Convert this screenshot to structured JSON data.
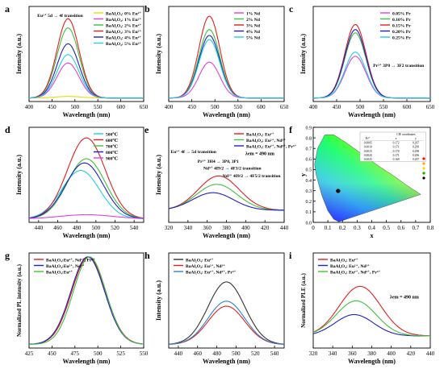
{
  "chart_data": [
    {
      "id": "a",
      "type": "line",
      "panel_label": "a",
      "xlabel": "Wavelength (nm)",
      "ylabel": "Intensity (a.u.)",
      "xlim": [
        400,
        650
      ],
      "xticks": [
        400,
        450,
        500,
        550,
        600,
        650
      ],
      "ylim": [
        0,
        1.1
      ],
      "legend_position": "top-right",
      "annotations": [
        {
          "text": "Eu²⁺ 5d → 4f transition",
          "x": 418,
          "y": 0.98
        }
      ],
      "series": [
        {
          "name": "BaAl₂O₄: 0% Eu²⁺",
          "color": "#e8e000",
          "peak": 0.02,
          "center": 485,
          "width": 40
        },
        {
          "name": "BaAl₂O₄: 1% Eu²⁺",
          "color": "#e040e0",
          "peak": 0.42,
          "center": 485,
          "width": 34
        },
        {
          "name": "BaAl₂O₄: 2% Eu²⁺",
          "color": "#40c040",
          "peak": 0.84,
          "center": 485,
          "width": 34
        },
        {
          "name": "BaAl₂O₄: 3% Eu²⁺",
          "color": "#e02020",
          "peak": 0.95,
          "center": 485,
          "width": 34
        },
        {
          "name": "BaAl₂O₄: 4% Eu²⁺",
          "color": "#2020c0",
          "peak": 0.65,
          "center": 485,
          "width": 34
        },
        {
          "name": "BaAl₂O₄: 5% Eu²⁺",
          "color": "#20d0e0",
          "peak": 0.52,
          "center": 485,
          "width": 34
        }
      ]
    },
    {
      "id": "b",
      "type": "line",
      "panel_label": "b",
      "xlabel": "Wavelength (nm)",
      "ylabel": "Intensity (a.u.)",
      "xlim": [
        400,
        650
      ],
      "xticks": [
        400,
        450,
        500,
        550,
        600,
        650
      ],
      "ylim": [
        0,
        1.1
      ],
      "legend_position": "top-right",
      "series": [
        {
          "name": "1% Nd",
          "color": "#e040e0",
          "peak": 0.43,
          "center": 488,
          "width": 32
        },
        {
          "name": "2% Nd",
          "color": "#40c040",
          "peak": 0.82,
          "center": 488,
          "width": 32
        },
        {
          "name": "3% Nd",
          "color": "#e02020",
          "peak": 0.98,
          "center": 488,
          "width": 32
        },
        {
          "name": "4% Nd",
          "color": "#2020c0",
          "peak": 0.75,
          "center": 488,
          "width": 32
        },
        {
          "name": "5% Nd",
          "color": "#20d0e0",
          "peak": 0.7,
          "center": 488,
          "width": 32
        }
      ]
    },
    {
      "id": "c",
      "type": "line",
      "panel_label": "c",
      "xlabel": "Wavelength (nm)",
      "ylabel": "Intensity (a.u.)",
      "xlim": [
        400,
        650
      ],
      "xticks": [
        400,
        450,
        500,
        550,
        600,
        650
      ],
      "ylim": [
        0,
        1.1
      ],
      "legend_position": "top-right",
      "annotations": [
        {
          "text": "Pr³⁺ 3P0 → 3F2 transition",
          "x": 528,
          "y": 0.4
        }
      ],
      "series": [
        {
          "name": "0.05% Pr",
          "color": "#e040e0",
          "peak": 0.5,
          "center": 490,
          "width": 32
        },
        {
          "name": "0.10% Pr",
          "color": "#40c040",
          "peak": 0.78,
          "center": 490,
          "width": 32
        },
        {
          "name": "0.15% Pr",
          "color": "#e02020",
          "peak": 0.88,
          "center": 490,
          "width": 32
        },
        {
          "name": "0.20% Pr",
          "color": "#2020c0",
          "peak": 0.82,
          "center": 490,
          "width": 32
        },
        {
          "name": "0.25% Pr",
          "color": "#20d0e0",
          "peak": 0.55,
          "center": 490,
          "width": 32
        }
      ]
    },
    {
      "id": "d",
      "type": "line",
      "panel_label": "d",
      "xlabel": "Wavelength (nm)",
      "ylabel": "Intensity (a.u.)",
      "xlim": [
        430,
        550
      ],
      "xticks": [
        440,
        460,
        480,
        500,
        520,
        540
      ],
      "ylim": [
        0,
        1.1
      ],
      "legend_position": "top-right",
      "series": [
        {
          "name": "500℃",
          "color": "#20d0e0",
          "peak": 0.58,
          "center": 484,
          "width": 28
        },
        {
          "name": "600℃",
          "color": "#e02020",
          "peak": 0.97,
          "center": 490,
          "width": 28
        },
        {
          "name": "700℃",
          "color": "#40c040",
          "peak": 0.72,
          "center": 490,
          "width": 28
        },
        {
          "name": "800℃",
          "color": "#2020c0",
          "peak": 0.67,
          "center": 488,
          "width": 28
        },
        {
          "name": "900℃",
          "color": "#e040e0",
          "peak": 0.05,
          "center": 490,
          "width": 40
        }
      ]
    },
    {
      "id": "e",
      "type": "line",
      "panel_label": "e",
      "xlabel": "Wavelength (nm)",
      "ylabel": "Intensity (a.u.)",
      "xlim": [
        320,
        440
      ],
      "xticks": [
        320,
        340,
        360,
        380,
        400,
        420,
        440
      ],
      "ylim": [
        0,
        1.1
      ],
      "legend_position": "top-right",
      "note": "λem = 490 nm",
      "annotations": [
        {
          "text": "Eu²⁺ 4f → 5d transition",
          "x": 322,
          "y": 0.8
        },
        {
          "text": "Pr³⁺ 3H4 → 3P0, 3P1",
          "x": 350,
          "y": 0.69
        },
        {
          "text": "Nd³⁺ 4I9/2 → 4F3/2 transition",
          "x": 356,
          "y": 0.61
        },
        {
          "text": "Nd³⁺ 4I9/2 → 4F5/2 transition",
          "x": 376,
          "y": 0.52
        }
      ],
      "series": [
        {
          "name": "BaAl₂O₄: Eu²⁺",
          "color": "#e02020",
          "peak": 0.45,
          "center": 372,
          "width": 30
        },
        {
          "name": "BaAl₂O₄: Eu²⁺, Nd³⁺",
          "color": "#40c040",
          "peak": 0.34,
          "center": 370,
          "width": 30
        },
        {
          "name": "BaAl₂O₄: Eu²⁺, Nd³⁺, Pr³⁺",
          "color": "#2020c0",
          "peak": 0.23,
          "center": 366,
          "width": 30
        }
      ]
    },
    {
      "id": "f",
      "type": "scatter",
      "panel_label": "f",
      "xlabel": "x",
      "ylabel": "y",
      "xlim": [
        0,
        0.8
      ],
      "xticks": [
        0.0,
        0.1,
        0.2,
        0.3,
        0.4,
        0.5,
        0.6,
        0.7,
        0.8
      ],
      "ylim": [
        0,
        0.9
      ],
      "yticks": [
        0.0,
        0.1,
        0.2,
        0.3,
        0.4,
        0.5,
        0.6,
        0.7,
        0.8,
        0.9
      ],
      "inset_table": {
        "title": "CIE coordinates",
        "headers": [
          "Pr³⁺",
          "x",
          "y"
        ],
        "rows": [
          [
            "0.0005",
            "0.172",
            "0.297"
          ],
          [
            "0.0010",
            "0.171",
            "0.299"
          ],
          [
            "0.0015",
            "0.170",
            "0.298"
          ],
          [
            "0.0020",
            "0.171",
            "0.296"
          ],
          [
            "0.0025",
            "0.169",
            "0.297"
          ]
        ]
      },
      "points": [
        {
          "x": 0.172,
          "y": 0.297,
          "color": "#ff0000"
        },
        {
          "x": 0.171,
          "y": 0.299,
          "color": "#ffa500"
        },
        {
          "x": 0.17,
          "y": 0.298,
          "color": "#e0e000"
        },
        {
          "x": 0.171,
          "y": 0.296,
          "color": "#00b000"
        },
        {
          "x": 0.169,
          "y": 0.297,
          "color": "#000000"
        }
      ]
    },
    {
      "id": "g",
      "type": "line",
      "panel_label": "g",
      "xlabel": "Wavelength (nm)",
      "ylabel": "Normalized PL intensity (a.u.)",
      "xlim": [
        425,
        550
      ],
      "xticks": [
        425,
        450,
        475,
        500,
        525,
        550
      ],
      "ylim": [
        0,
        1.05
      ],
      "legend_position": "top-left",
      "series": [
        {
          "name": "BaAl₂O₄:Eu²⁺, Nd³⁺, Pr³⁺",
          "color": "#e02020",
          "peak": 1.0,
          "center": 490,
          "width": 26
        },
        {
          "name": "BaAl₂O₄:Eu²⁺, Nd³⁺",
          "color": "#2020c0",
          "peak": 1.0,
          "center": 489,
          "width": 26
        },
        {
          "name": "BaAl₂O₄:Eu²⁺",
          "color": "#40c040",
          "peak": 1.0,
          "center": 491,
          "width": 25
        }
      ]
    },
    {
      "id": "h",
      "type": "line",
      "panel_label": "h",
      "xlabel": "Wavelength (nm)",
      "ylabel": "Intensity (a.u.)",
      "xlim": [
        430,
        550
      ],
      "xticks": [
        440,
        460,
        480,
        500,
        520,
        540
      ],
      "ylim": [
        0,
        1.1
      ],
      "legend_position": "top-left",
      "series": [
        {
          "name": "BaAl₂O₄: Eu²⁺",
          "color": "#333333",
          "peak": 0.75,
          "center": 490,
          "width": 27
        },
        {
          "name": "BaAl₂O₄: Eu²⁺, Nd³⁺",
          "color": "#e02020",
          "peak": 0.46,
          "center": 490,
          "width": 27
        },
        {
          "name": "BaAl₂O₄: Eu²⁺, Nd³⁺, Pr³⁺",
          "color": "#3080d0",
          "peak": 0.52,
          "center": 490,
          "width": 27
        }
      ]
    },
    {
      "id": "i",
      "type": "line",
      "panel_label": "i",
      "xlabel": "Wavelength (nm)",
      "ylabel": "Normalized PLE (a.u.)",
      "xlim": [
        320,
        440
      ],
      "xticks": [
        320,
        340,
        360,
        380,
        400,
        420,
        440
      ],
      "ylim": [
        0,
        1.1
      ],
      "legend_position": "top-left",
      "note": "λem = 490 nm",
      "series": [
        {
          "name": "BaAl₂O₄: Eu²⁺",
          "color": "#e02020",
          "peak": 0.65,
          "center": 368,
          "width": 30
        },
        {
          "name": "BaAl₂O₄: Eu²⁺, Nd³⁺",
          "color": "#2020c0",
          "peak": 0.28,
          "center": 362,
          "width": 28
        },
        {
          "name": "BaAl₂O₄: Eu²⁺, Nd³⁺, Pr³⁺",
          "color": "#40c040",
          "peak": 0.46,
          "center": 364,
          "width": 29
        }
      ]
    }
  ]
}
